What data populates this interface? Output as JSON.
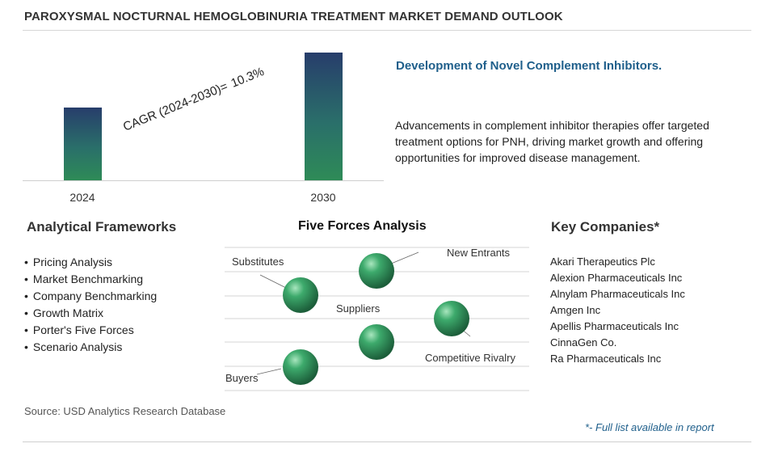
{
  "title": "PAROXYSMAL NOCTURNAL HEMOGLOBINURIA TREATMENT MARKET DEMAND OUTLOOK",
  "chart_data": {
    "type": "bar",
    "categories": [
      "2024",
      "2030"
    ],
    "values": [
      0.57,
      1.0
    ],
    "cagr_label": "CAGR (2024-2030)=",
    "cagr_value": "10.3%"
  },
  "insight": {
    "heading": "Development of Novel Complement Inhibitors.",
    "body": "Advancements in complement inhibitor therapies offer targeted treatment options for PNH, driving market growth and offering opportunities for improved disease management."
  },
  "frameworks": {
    "heading": "Analytical Frameworks",
    "items": [
      "Pricing Analysis",
      "Market Benchmarking",
      "Company Benchmarking",
      "Growth Matrix",
      "Porter's Five Forces",
      "Scenario Analysis"
    ]
  },
  "five_forces": {
    "heading": "Five Forces Analysis",
    "labels": [
      "Substitutes",
      "New Entrants",
      "Suppliers",
      "Competitive Rivalry",
      "Buyers"
    ],
    "sphere_color": "#2e8b57"
  },
  "companies": {
    "heading": "Key Companies*",
    "items": [
      "Akari Therapeutics Plc",
      "Alexion Pharmaceuticals Inc",
      "Alnylam Pharmaceuticals Inc",
      "Amgen Inc",
      "Apellis Pharmaceuticals Inc",
      "CinnaGen Co.",
      "Ra Pharmaceuticals Inc"
    ]
  },
  "source": "Source: USD Analytics Research Database",
  "footnote": "*- Full list available in report",
  "colors": {
    "accent": "#1f5f8b",
    "bar_top": "#273d6b",
    "bar_bottom": "#2e8b57"
  }
}
